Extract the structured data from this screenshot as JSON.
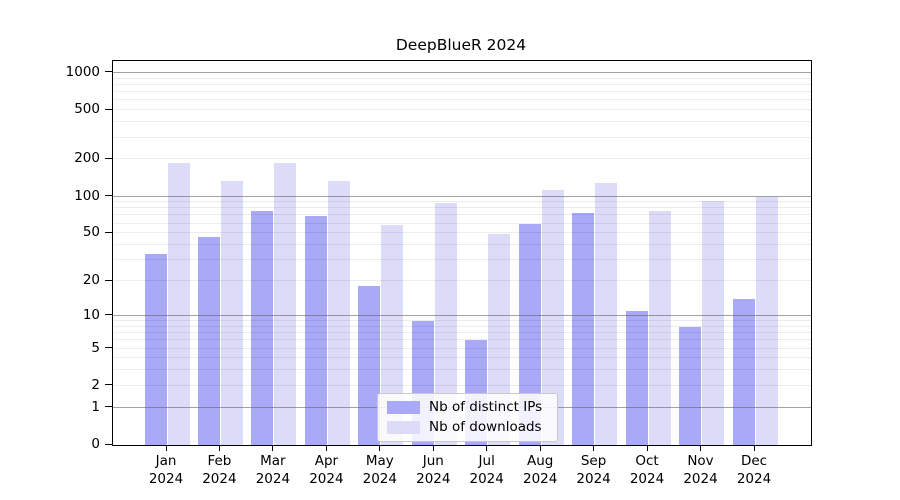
{
  "chart_data": {
    "type": "bar",
    "title": "DeepBlueR 2024",
    "y_scale": "log1p (tick position proportional to log10(1+value); 0 at baseline)",
    "categories": [
      {
        "month": "Jan",
        "year": "2024"
      },
      {
        "month": "Feb",
        "year": "2024"
      },
      {
        "month": "Mar",
        "year": "2024"
      },
      {
        "month": "Apr",
        "year": "2024"
      },
      {
        "month": "May",
        "year": "2024"
      },
      {
        "month": "Jun",
        "year": "2024"
      },
      {
        "month": "Jul",
        "year": "2024"
      },
      {
        "month": "Aug",
        "year": "2024"
      },
      {
        "month": "Sep",
        "year": "2024"
      },
      {
        "month": "Oct",
        "year": "2024"
      },
      {
        "month": "Nov",
        "year": "2024"
      },
      {
        "month": "Dec",
        "year": "2024"
      }
    ],
    "series": [
      {
        "key": "distinct-ips",
        "name": "Nb of distinct IPs",
        "color": "#a9a9f7",
        "values": [
          34,
          47,
          76,
          69,
          18,
          9,
          6,
          60,
          74,
          11,
          8,
          14
        ]
      },
      {
        "key": "downloads",
        "name": "Nb of downloads",
        "color": "#dcdcf8",
        "values": [
          186,
          134,
          188,
          134,
          58,
          88,
          49,
          113,
          130,
          76,
          92,
          100
        ]
      }
    ],
    "y_axis": {
      "tick_labels": [
        "0",
        "1",
        "2",
        "5",
        "10",
        "20",
        "50",
        "100",
        "200",
        "500",
        "1000"
      ],
      "tick_values": [
        0,
        1,
        2,
        5,
        10,
        20,
        50,
        100,
        200,
        500,
        1000
      ],
      "major_gridlines": [
        1,
        10,
        100,
        1000
      ],
      "minor_gridlines": [
        2,
        3,
        4,
        5,
        6,
        7,
        8,
        9,
        20,
        30,
        40,
        50,
        60,
        70,
        80,
        90,
        200,
        300,
        400,
        500,
        600,
        700,
        800,
        900
      ],
      "range_top_approx": 1250,
      "grid": "on, drawn above bars"
    },
    "legend": {
      "position": "lower center",
      "entries": [
        {
          "label": "Nb of distinct IPs",
          "series_key": "distinct-ips"
        },
        {
          "label": "Nb of downloads",
          "series_key": "downloads"
        }
      ]
    },
    "colors": {
      "background": "#ffffff",
      "bar_distinct_ips": "#a9a9f7",
      "bar_downloads": "#dcdcf8",
      "major_gridline": "#b0b0b0",
      "minor_gridline": "#ececec",
      "axis": "#000000"
    }
  }
}
